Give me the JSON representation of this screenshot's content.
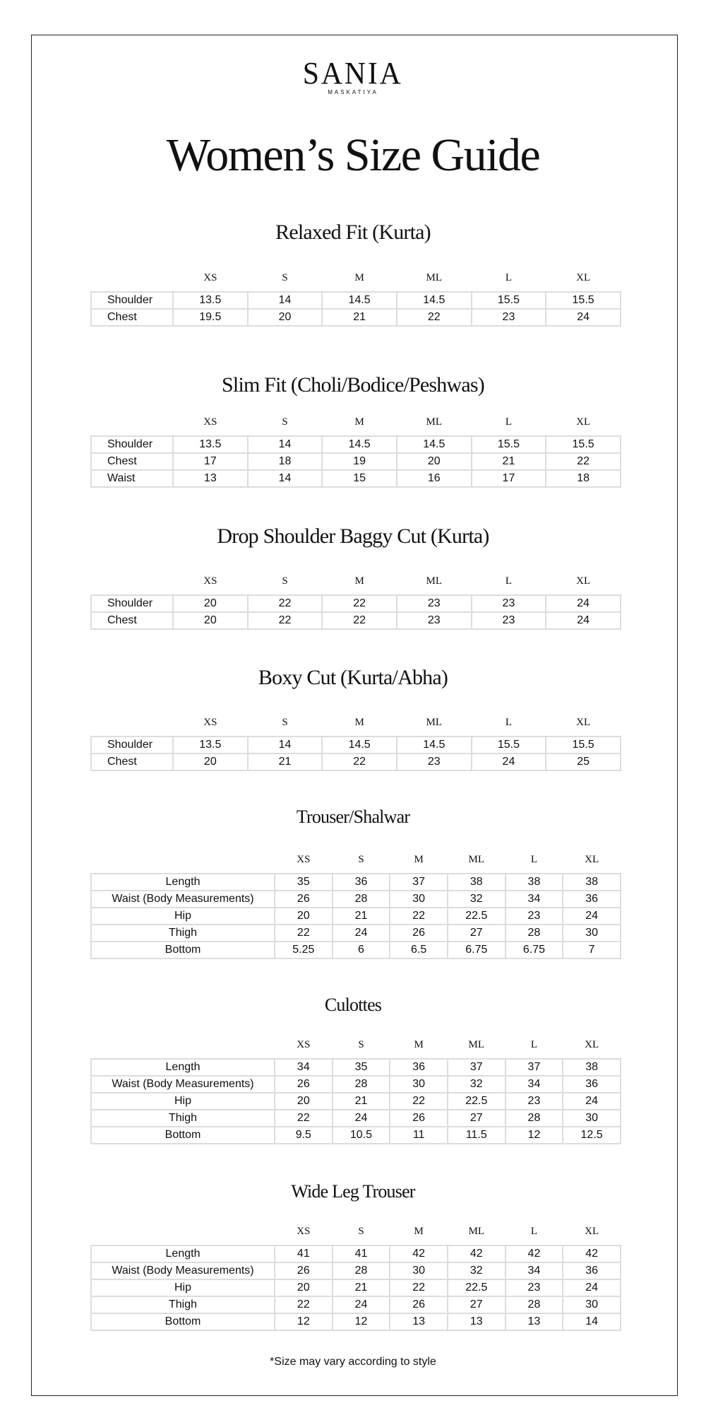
{
  "brand": {
    "name": "SANIA",
    "sub": "MASKATIYA"
  },
  "title": "Women’s Size Guide",
  "sizes": [
    "XS",
    "S",
    "M",
    "ML",
    "L",
    "XL"
  ],
  "sections": [
    {
      "title": "Relaxed Fit (Kurta)",
      "rows": [
        [
          "Shoulder",
          "13.5",
          "14",
          "14.5",
          "14.5",
          "15.5",
          "15.5"
        ],
        [
          "Chest",
          "19.5",
          "20",
          "21",
          "22",
          "23",
          "24"
        ]
      ]
    },
    {
      "title": "Slim Fit (Choli/Bodice/Peshwas)",
      "rows": [
        [
          "Shoulder",
          "13.5",
          "14",
          "14.5",
          "14.5",
          "15.5",
          "15.5"
        ],
        [
          "Chest",
          "17",
          "18",
          "19",
          "20",
          "21",
          "22"
        ],
        [
          "Waist",
          "13",
          "14",
          "15",
          "16",
          "17",
          "18"
        ]
      ]
    },
    {
      "title": "Drop Shoulder Baggy Cut (Kurta)",
      "rows": [
        [
          "Shoulder",
          "20",
          "22",
          "22",
          "23",
          "23",
          "24"
        ],
        [
          "Chest",
          "20",
          "22",
          "22",
          "23",
          "23",
          "24"
        ]
      ]
    },
    {
      "title": "Boxy Cut (Kurta/Abha)",
      "rows": [
        [
          "Shoulder",
          "13.5",
          "14",
          "14.5",
          "14.5",
          "15.5",
          "15.5"
        ],
        [
          "Chest",
          "20",
          "21",
          "22",
          "23",
          "24",
          "25"
        ]
      ]
    },
    {
      "title": "Trouser/Shalwar",
      "rows": [
        [
          "Length",
          "35",
          "36",
          "37",
          "38",
          "38",
          "38"
        ],
        [
          "Waist (Body Measurements)",
          "26",
          "28",
          "30",
          "32",
          "34",
          "36"
        ],
        [
          "Hip",
          "20",
          "21",
          "22",
          "22.5",
          "23",
          "24"
        ],
        [
          "Thigh",
          "22",
          "24",
          "26",
          "27",
          "28",
          "30"
        ],
        [
          "Bottom",
          "5.25",
          "6",
          "6.5",
          "6.75",
          "6.75",
          "7"
        ]
      ]
    },
    {
      "title": "Culottes",
      "rows": [
        [
          "Length",
          "34",
          "35",
          "36",
          "37",
          "37",
          "38"
        ],
        [
          "Waist (Body Measurements)",
          "26",
          "28",
          "30",
          "32",
          "34",
          "36"
        ],
        [
          "Hip",
          "20",
          "21",
          "22",
          "22.5",
          "23",
          "24"
        ],
        [
          "Thigh",
          "22",
          "24",
          "26",
          "27",
          "28",
          "30"
        ],
        [
          "Bottom",
          "9.5",
          "10.5",
          "11",
          "11.5",
          "12",
          "12.5"
        ]
      ]
    },
    {
      "title": "Wide Leg Trouser",
      "rows": [
        [
          "Length",
          "41",
          "41",
          "42",
          "42",
          "42",
          "42"
        ],
        [
          "Waist (Body Measurements)",
          "26",
          "28",
          "30",
          "32",
          "34",
          "36"
        ],
        [
          "Hip",
          "20",
          "21",
          "22",
          "22.5",
          "23",
          "24"
        ],
        [
          "Thigh",
          "22",
          "24",
          "26",
          "27",
          "28",
          "30"
        ],
        [
          "Bottom",
          "12",
          "12",
          "13",
          "13",
          "13",
          "14"
        ]
      ]
    }
  ],
  "footnote": "*Size may vary according to style"
}
